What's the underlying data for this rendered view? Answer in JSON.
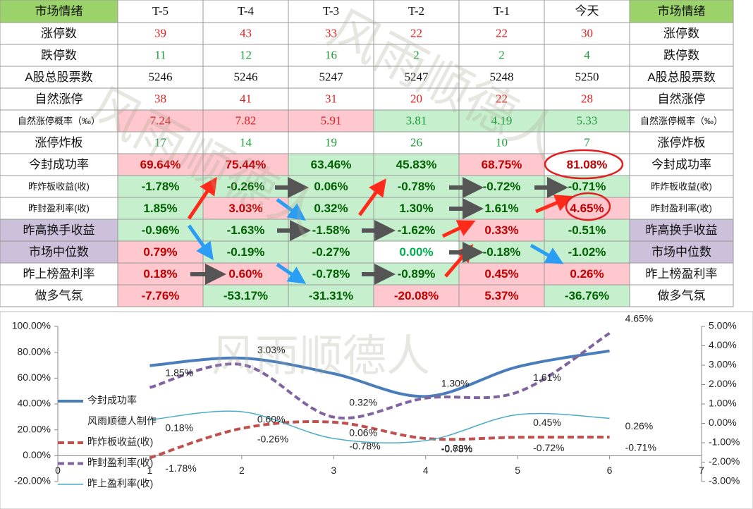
{
  "table": {
    "header": [
      "市场情绪",
      "T-5",
      "T-4",
      "T-3",
      "T-2",
      "T-1",
      "今天",
      "市场情绪"
    ],
    "header_bg": "#9bd36a",
    "rows": [
      {
        "label": "涨停数",
        "cells": [
          "39",
          "43",
          "33",
          "22",
          "22",
          "30"
        ],
        "bg": [
          "#ffffff",
          "#ffffff",
          "#ffffff",
          "#ffffff",
          "#ffffff",
          "#ffffff"
        ],
        "fg": [
          "#e02020",
          "#e02020",
          "#e02020",
          "#e02020",
          "#e02020",
          "#e02020"
        ]
      },
      {
        "label": "跌停数",
        "cells": [
          "11",
          "12",
          "16",
          "2",
          "2",
          "4"
        ],
        "bg": [
          "#ffffff",
          "#ffffff",
          "#ffffff",
          "#ffffff",
          "#ffffff",
          "#ffffff"
        ],
        "fg": [
          "#1e9e3a",
          "#1e9e3a",
          "#1e9e3a",
          "#1e9e3a",
          "#1e9e3a",
          "#1e9e3a"
        ]
      },
      {
        "label": "A股总股票数",
        "cells": [
          "5246",
          "5246",
          "5247",
          "5247",
          "5248",
          "5250"
        ],
        "bg": [
          "#ffffff",
          "#ffffff",
          "#ffffff",
          "#ffffff",
          "#ffffff",
          "#ffffff"
        ],
        "fg": [
          "#111111",
          "#111111",
          "#111111",
          "#111111",
          "#111111",
          "#111111"
        ]
      },
      {
        "label": "自然涨停",
        "cells": [
          "38",
          "41",
          "31",
          "20",
          "22",
          "28"
        ],
        "bg": [
          "#ffffff",
          "#ffffff",
          "#ffffff",
          "#ffffff",
          "#ffffff",
          "#ffffff"
        ],
        "fg": [
          "#e02020",
          "#e02020",
          "#e02020",
          "#e02020",
          "#e02020",
          "#e02020"
        ]
      },
      {
        "label": "自然涨停概率（‰）",
        "cells": [
          "7.24",
          "7.82",
          "5.91",
          "3.81",
          "4.19",
          "5.33"
        ],
        "bg": [
          "#ffc7ce",
          "#ffc7ce",
          "#ffc7ce",
          "#c6efce",
          "#c6efce",
          "#c6efce"
        ],
        "fg": [
          "#e02020",
          "#e02020",
          "#e02020",
          "#1e9e3a",
          "#1e9e3a",
          "#1e9e3a"
        ]
      },
      {
        "label": "涨停炸板",
        "cells": [
          "17",
          "14",
          "19",
          "26",
          "10",
          "7"
        ],
        "bg": [
          "#ffffff",
          "#ffffff",
          "#ffffff",
          "#ffffff",
          "#ffffff",
          "#ffffff"
        ],
        "fg": [
          "#1e9e3a",
          "#1e9e3a",
          "#1e9e3a",
          "#1e9e3a",
          "#1e9e3a",
          "#1e9e3a"
        ]
      },
      {
        "label": "今封成功率",
        "cells": [
          "69.64%",
          "75.44%",
          "63.46%",
          "45.83%",
          "68.75%",
          "81.08%"
        ],
        "bg": [
          "#ffc7ce",
          "#ffc7ce",
          "#c6efce",
          "#c6efce",
          "#ffc7ce",
          "#ffffff"
        ],
        "fg": [
          "#c00000",
          "#c00000",
          "#006100",
          "#006100",
          "#c00000",
          "#c00000"
        ]
      },
      {
        "label": "昨炸板收益(收)",
        "cells": [
          "-1.78%",
          "-0.26%",
          "0.06%",
          "-0.78%",
          "-0.72%",
          "-0.71%"
        ],
        "bg": [
          "#c6efce",
          "#c6efce",
          "#c6efce",
          "#c6efce",
          "#c6efce",
          "#c6efce"
        ],
        "fg": [
          "#006100",
          "#006100",
          "#006100",
          "#006100",
          "#006100",
          "#006100"
        ]
      },
      {
        "label": "昨封盈利率(收)",
        "cells": [
          "1.85%",
          "3.03%",
          "0.32%",
          "1.30%",
          "1.61%",
          "4.65%"
        ],
        "bg": [
          "#c6efce",
          "#ffc7ce",
          "#c6efce",
          "#c6efce",
          "#c6efce",
          "#ffc7ce"
        ],
        "fg": [
          "#006100",
          "#c00000",
          "#006100",
          "#006100",
          "#006100",
          "#c00000"
        ]
      },
      {
        "label": "昨高换手收益",
        "label_bg": "#ccc0da",
        "cells": [
          "-0.96%",
          "-1.63%",
          "-1.58%",
          "-1.62%",
          "0.33%",
          "-0.51%"
        ],
        "bg": [
          "#c6efce",
          "#c6efce",
          "#c6efce",
          "#c6efce",
          "#ffc7ce",
          "#c6efce"
        ],
        "fg": [
          "#006100",
          "#006100",
          "#006100",
          "#006100",
          "#c00000",
          "#006100"
        ]
      },
      {
        "label": "市场中位数",
        "label_bg": "#ccc0da",
        "cells": [
          "0.79%",
          "-0.19%",
          "-0.27%",
          "0.00%",
          "-0.18%",
          "-1.02%"
        ],
        "bg": [
          "#ffc7ce",
          "#c6efce",
          "#c6efce",
          "#ffffff",
          "#c6efce",
          "#c6efce"
        ],
        "fg": [
          "#c00000",
          "#006100",
          "#006100",
          "#00b050",
          "#006100",
          "#006100"
        ]
      },
      {
        "label": "昨上榜盈利率",
        "cells": [
          "0.18%",
          "0.60%",
          "-0.78%",
          "-0.89%",
          "0.45%",
          "0.26%"
        ],
        "bg": [
          "#ffc7ce",
          "#ffc7ce",
          "#c6efce",
          "#c6efce",
          "#ffc7ce",
          "#ffc7ce"
        ],
        "fg": [
          "#c00000",
          "#c00000",
          "#006100",
          "#006100",
          "#c00000",
          "#c00000"
        ]
      },
      {
        "label": "做多气氛",
        "cells": [
          "-7.76%",
          "-53.17%",
          "-31.31%",
          "-20.08%",
          "5.37%",
          "-36.76%"
        ],
        "bg": [
          "#ffc7ce",
          "#c6efce",
          "#c6efce",
          "#ffc7ce",
          "#ffc7ce",
          "#c6efce"
        ],
        "fg": [
          "#c00000",
          "#006100",
          "#006100",
          "#c00000",
          "#c00000",
          "#006100"
        ]
      }
    ]
  },
  "watermark": "风雨顺德人",
  "chart_data": {
    "type": "line",
    "x": [
      1,
      2,
      3,
      4,
      5,
      6
    ],
    "xlim": [
      0,
      7
    ],
    "xticks": [
      0,
      1,
      2,
      3,
      4,
      5,
      6,
      7
    ],
    "ylim": [
      -20,
      100
    ],
    "yticks": [
      {
        "value": -20,
        "label": "-20.00%"
      },
      {
        "value": 0,
        "label": "0.00%"
      },
      {
        "value": 20,
        "label": "20.00%"
      },
      {
        "value": 40,
        "label": "40.00%"
      },
      {
        "value": 60,
        "label": "60.00%"
      },
      {
        "value": 80,
        "label": "80.00%"
      },
      {
        "value": 100,
        "label": "100.00%"
      }
    ],
    "y2lim": [
      -3,
      5
    ],
    "y2ticks": [
      {
        "value": -3,
        "label": "-3.00%"
      },
      {
        "value": -2,
        "label": "-2.00%"
      },
      {
        "value": -1,
        "label": "-1.00%"
      },
      {
        "value": 0,
        "label": "0.00%"
      },
      {
        "value": 1,
        "label": "1.00%"
      },
      {
        "value": 2,
        "label": "2.00%"
      },
      {
        "value": 3,
        "label": "3.00%"
      },
      {
        "value": 4,
        "label": "4.00%"
      },
      {
        "value": 5,
        "label": "5.00%"
      }
    ],
    "legend_note": "风雨顺德人制作",
    "series": [
      {
        "name": "今封成功率",
        "color": "#4a7ebb",
        "width": 4,
        "values": [
          69.64,
          75.44,
          63.46,
          45.83,
          68.75,
          81.08
        ]
      },
      {
        "name": "昨炸板收益(收)",
        "color": "#c0504d",
        "width": 4,
        "dashed": true,
        "axis": "y2",
        "values": [
          -1.78,
          -0.26,
          0.06,
          -0.78,
          -0.72,
          -0.71
        ],
        "value_labels": [
          "-1.78%",
          "-0.26%",
          "0.06%",
          "-0.78%",
          "-0.72%",
          "-0.71%"
        ]
      },
      {
        "name": "昨封盈利率(收)",
        "color": "#8064a2",
        "width": 4,
        "dashed": true,
        "axis": "y2",
        "values": [
          1.85,
          3.03,
          0.32,
          1.3,
          1.61,
          4.65
        ],
        "value_labels": [
          "1.85%",
          "3.03%",
          "0.32%",
          "1.30%",
          "1.61%",
          "4.65%"
        ]
      },
      {
        "name": "昨上盈利率(收)",
        "color": "#4bacc6",
        "width": 1.5,
        "axis": "y2",
        "values": [
          0.18,
          0.6,
          -0.78,
          -0.89,
          0.45,
          0.26
        ],
        "value_labels": [
          "0.18%",
          "0.60%",
          "-0.78%",
          "-0.89%",
          "0.45%",
          "0.26%"
        ]
      }
    ]
  }
}
